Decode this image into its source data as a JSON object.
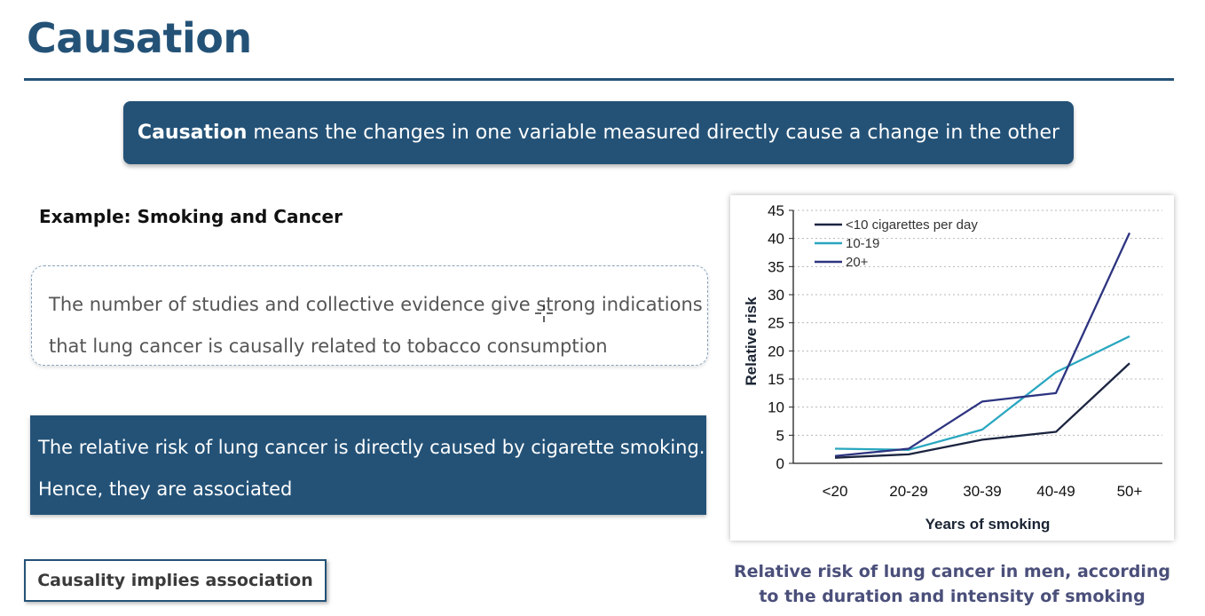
{
  "slide": {
    "title": "Causation",
    "definition": {
      "term": "Causation",
      "text": " means the changes in one variable measured directly cause a change in the other"
    },
    "example_heading": "Example: Smoking and Cancer",
    "evidence_lines": [
      "The number of studies and collective evidence give strong indications",
      "that lung cancer is causally related to tobacco consumption"
    ],
    "conclusion_lines": [
      "The relative risk of lung cancer is directly caused by cigarette smoking.",
      "Hence, they are associated"
    ],
    "implies_label": "Causality implies association",
    "caption_lines": [
      "Relative risk of lung cancer in men, according",
      "to the duration and intensity of smoking"
    ]
  },
  "colors": {
    "accent": "#245277",
    "series_low": "#1c2540",
    "series_mid": "#2aa7c0",
    "series_high": "#2d3480"
  },
  "icons": {
    "cursor": "crosshair-cursor-icon"
  },
  "chart_data": {
    "type": "line",
    "xlabel": "Years of smoking",
    "ylabel": "Relative risk",
    "categories": [
      "<20",
      "20-29",
      "30-39",
      "40-49",
      "50+"
    ],
    "ylim": [
      0,
      45
    ],
    "yticks": [
      0,
      5,
      10,
      15,
      20,
      25,
      30,
      35,
      40,
      45
    ],
    "grid": "horizontal dotted",
    "legend_position": "top-left",
    "series": [
      {
        "name": "<10 cigarettes per day",
        "values": [
          1.0,
          1.6,
          4.2,
          5.6,
          17.8
        ]
      },
      {
        "name": "10-19",
        "values": [
          2.6,
          2.4,
          6.0,
          16.2,
          22.6
        ]
      },
      {
        "name": "20+",
        "values": [
          1.3,
          2.6,
          11.0,
          12.5,
          41.0
        ]
      }
    ]
  }
}
